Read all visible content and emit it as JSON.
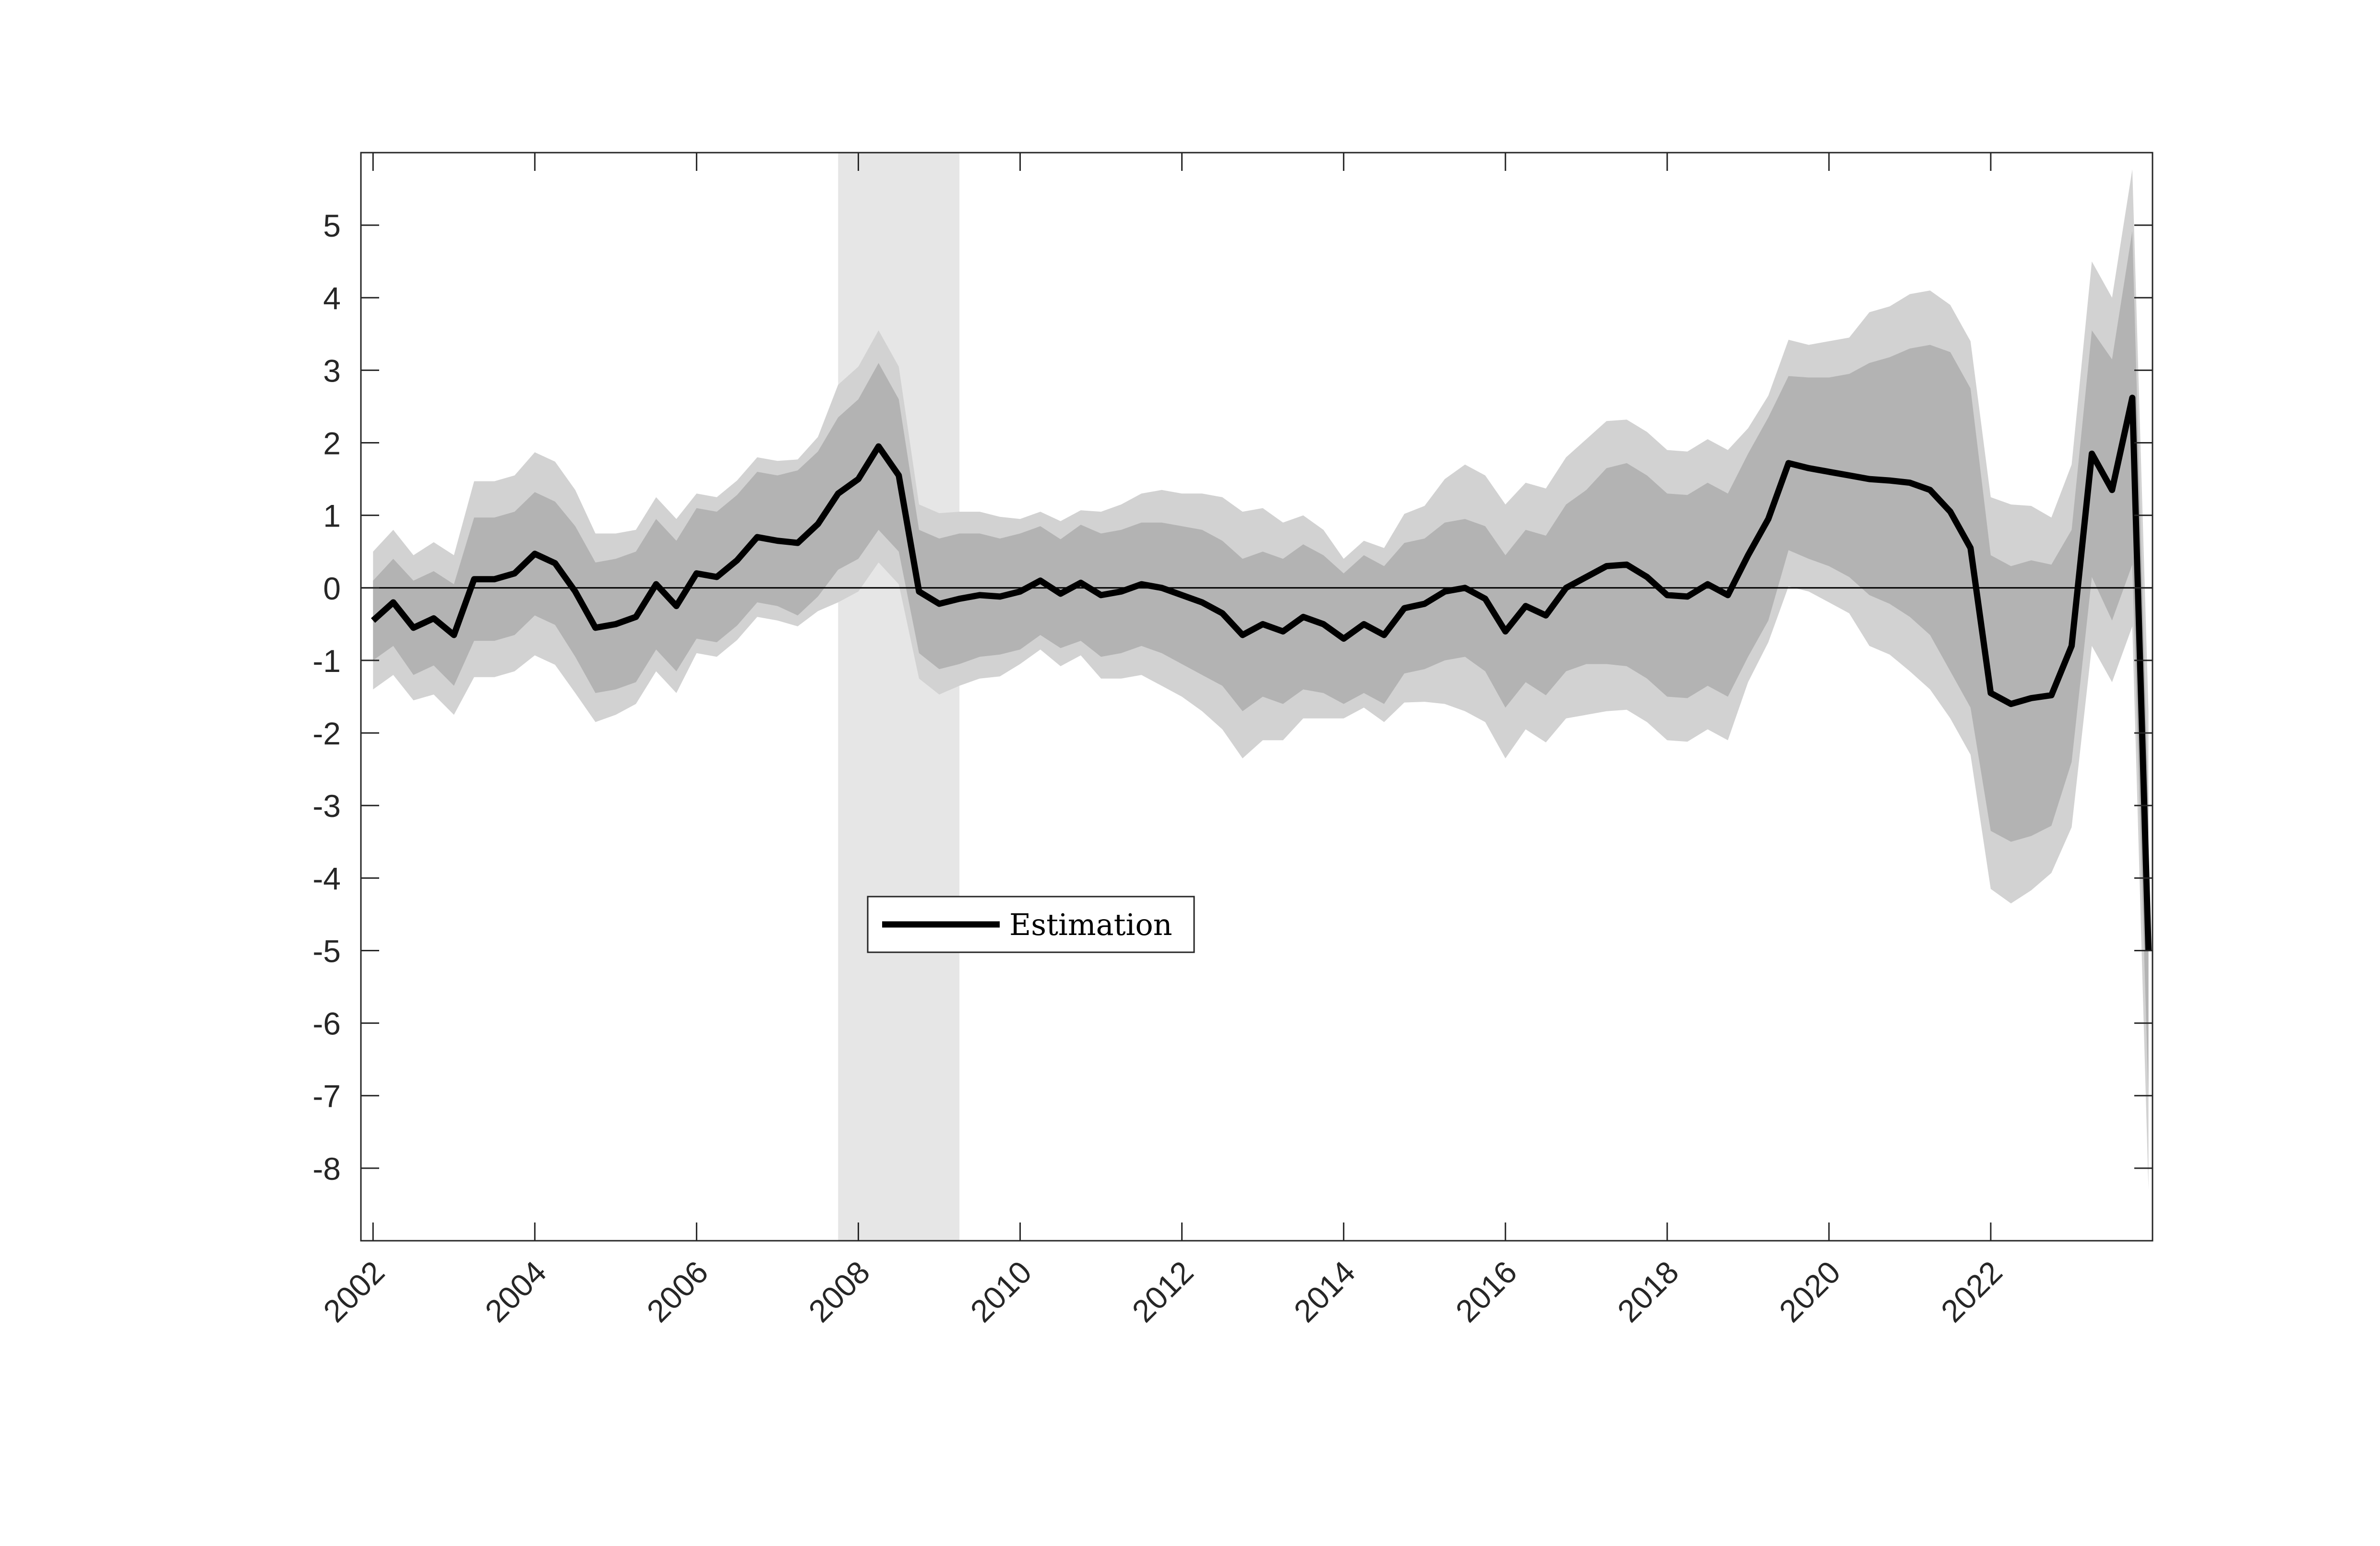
{
  "chart_data": {
    "type": "line",
    "title": "",
    "xlabel": "",
    "ylabel": "",
    "xlim": [
      2001.85,
      2024.0
    ],
    "ylim": [
      -9,
      6
    ],
    "x_ticks": [
      2002,
      2004,
      2006,
      2008,
      2010,
      2012,
      2014,
      2016,
      2018,
      2020,
      2022
    ],
    "x_tick_labels": [
      "2002",
      "2004",
      "2006",
      "2008",
      "2010",
      "2012",
      "2014",
      "2016",
      "2018",
      "2020",
      "2022"
    ],
    "y_ticks": [
      -8,
      -7,
      -6,
      -5,
      -4,
      -3,
      -2,
      -1,
      0,
      1,
      2,
      3,
      4,
      5
    ],
    "y_tick_labels": [
      "-8",
      "-7",
      "-6",
      "-5",
      "-4",
      "-3",
      "-2",
      "-1",
      "0",
      "1",
      "2",
      "3",
      "4",
      "5"
    ],
    "grid": false,
    "zero_line": true,
    "legend": {
      "position": "center-left",
      "entries": [
        "Estimation"
      ]
    },
    "recession_band": {
      "x_start": 2007.75,
      "x_end": 2009.25,
      "color": "#e6e6e6"
    },
    "colors": {
      "line": "#000000",
      "band_inner": "#b3b3b3",
      "band_outer": "#d2d2d2"
    },
    "x": [
      2002.0,
      2002.25,
      2002.5,
      2002.75,
      2003.0,
      2003.25,
      2003.5,
      2003.75,
      2004.0,
      2004.25,
      2004.5,
      2004.75,
      2005.0,
      2005.25,
      2005.5,
      2005.75,
      2006.0,
      2006.25,
      2006.5,
      2006.75,
      2007.0,
      2007.25,
      2007.5,
      2007.75,
      2008.0,
      2008.25,
      2008.5,
      2008.75,
      2009.0,
      2009.25,
      2009.5,
      2009.75,
      2010.0,
      2010.25,
      2010.5,
      2010.75,
      2011.0,
      2011.25,
      2011.5,
      2011.75,
      2012.0,
      2012.25,
      2012.5,
      2012.75,
      2013.0,
      2013.25,
      2013.5,
      2013.75,
      2014.0,
      2014.25,
      2014.5,
      2014.75,
      2015.0,
      2015.25,
      2015.5,
      2015.75,
      2016.0,
      2016.25,
      2016.5,
      2016.75,
      2017.0,
      2017.25,
      2017.5,
      2017.75,
      2018.0,
      2018.25,
      2018.5,
      2018.75,
      2019.0,
      2019.25,
      2019.5,
      2019.75,
      2020.0,
      2020.25,
      2020.5,
      2020.75,
      2021.0,
      2021.25,
      2021.5,
      2021.75,
      2022.0,
      2022.25,
      2022.5,
      2022.75,
      2023.0,
      2023.25,
      2023.5,
      2023.75
    ],
    "series": [
      {
        "name": "Estimation",
        "values": [
          -0.45,
          -0.2,
          -0.55,
          -0.42,
          -0.65,
          0.12,
          0.12,
          0.2,
          0.47,
          0.34,
          -0.05,
          -0.55,
          -0.5,
          -0.4,
          0.05,
          -0.25,
          0.2,
          0.15,
          0.38,
          0.7,
          0.65,
          0.62,
          0.88,
          1.3,
          1.5,
          1.95,
          1.55,
          -0.05,
          -0.22,
          -0.15,
          -0.1,
          -0.12,
          -0.05,
          0.1,
          -0.08,
          0.07,
          -0.1,
          -0.05,
          0.05,
          0.0,
          -0.1,
          -0.2,
          -0.35,
          -0.65,
          -0.5,
          -0.6,
          -0.4,
          -0.5,
          -0.7,
          -0.5,
          -0.65,
          -0.28,
          -0.22,
          -0.05,
          0.0,
          -0.15,
          -0.6,
          -0.25,
          -0.38,
          0.0,
          0.15,
          0.3,
          0.32,
          0.15,
          -0.1,
          -0.12,
          0.05,
          -0.1,
          0.45,
          0.95,
          1.72,
          1.65,
          1.6,
          1.55,
          1.5,
          1.48,
          1.45,
          1.35,
          1.05,
          0.55,
          -1.45,
          -1.6,
          -1.52,
          -1.48,
          -0.8,
          1.85,
          1.35,
          2.62
        ]
      }
    ],
    "final_point": {
      "x": 2023.95,
      "y": -5.0
    },
    "band_inner_halfwidth": [
      0.55,
      0.6,
      0.65,
      0.65,
      0.7,
      0.85,
      0.85,
      0.85,
      0.85,
      0.85,
      0.9,
      0.9,
      0.9,
      0.9,
      0.9,
      0.9,
      0.9,
      0.9,
      0.9,
      0.9,
      0.9,
      1.0,
      1.0,
      1.05,
      1.1,
      1.15,
      1.05,
      0.85,
      0.9,
      0.9,
      0.85,
      0.8,
      0.8,
      0.75,
      0.75,
      0.8,
      0.85,
      0.85,
      0.85,
      0.9,
      0.95,
      1.0,
      1.0,
      1.05,
      1.0,
      1.0,
      1.0,
      0.95,
      0.9,
      0.95,
      0.95,
      0.9,
      0.9,
      0.95,
      0.95,
      1.0,
      1.05,
      1.05,
      1.1,
      1.15,
      1.2,
      1.35,
      1.4,
      1.4,
      1.4,
      1.4,
      1.4,
      1.4,
      1.4,
      1.4,
      1.2,
      1.25,
      1.3,
      1.4,
      1.6,
      1.7,
      1.85,
      2.0,
      2.2,
      2.2,
      1.9,
      1.9,
      1.9,
      1.8,
      1.6,
      1.7,
      1.8,
      2.3
    ],
    "band_outer_halfwidth": [
      0.95,
      1.0,
      1.0,
      1.05,
      1.1,
      1.35,
      1.35,
      1.35,
      1.4,
      1.4,
      1.4,
      1.3,
      1.25,
      1.2,
      1.2,
      1.2,
      1.1,
      1.1,
      1.1,
      1.1,
      1.1,
      1.15,
      1.2,
      1.5,
      1.55,
      1.6,
      1.5,
      1.2,
      1.25,
      1.2,
      1.15,
      1.1,
      1.0,
      0.95,
      1.0,
      1.0,
      1.15,
      1.2,
      1.25,
      1.35,
      1.4,
      1.5,
      1.6,
      1.7,
      1.6,
      1.5,
      1.4,
      1.3,
      1.1,
      1.15,
      1.2,
      1.3,
      1.35,
      1.55,
      1.7,
      1.7,
      1.75,
      1.7,
      1.75,
      1.8,
      1.9,
      2.0,
      2.0,
      2.0,
      2.0,
      2.0,
      2.0,
      2.0,
      1.75,
      1.7,
      1.7,
      1.7,
      1.8,
      1.9,
      2.3,
      2.4,
      2.6,
      2.75,
      2.85,
      2.85,
      2.7,
      2.75,
      2.65,
      2.45,
      2.5,
      2.65,
      2.65,
      3.15
    ]
  }
}
